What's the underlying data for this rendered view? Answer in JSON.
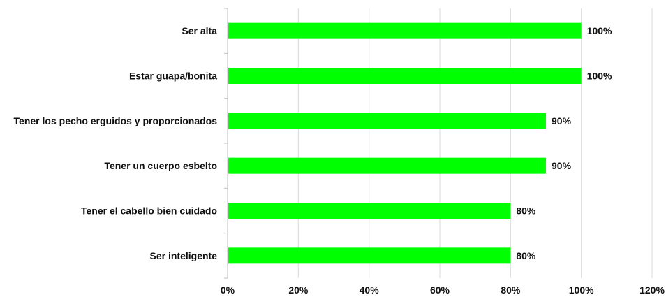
{
  "chart_data": {
    "type": "bar",
    "orientation": "horizontal",
    "categories": [
      "Ser alta",
      "Estar guapa/bonita",
      "Tener los pecho erguidos y proporcionados",
      "Tener un cuerpo esbelto",
      "Tener el cabello bien cuidado",
      "Ser inteligente"
    ],
    "values": [
      100,
      100,
      90,
      90,
      80,
      80
    ],
    "data_labels": [
      "100%",
      "100%",
      "90%",
      "90%",
      "80%",
      "80%"
    ],
    "x_ticks": [
      "0%",
      "20%",
      "40%",
      "60%",
      "80%",
      "100%",
      "120%"
    ],
    "xlim": [
      0,
      120
    ],
    "title": "",
    "xlabel": "",
    "ylabel": "",
    "grid": true,
    "legend": "none",
    "bar_color": "#00ff00"
  }
}
